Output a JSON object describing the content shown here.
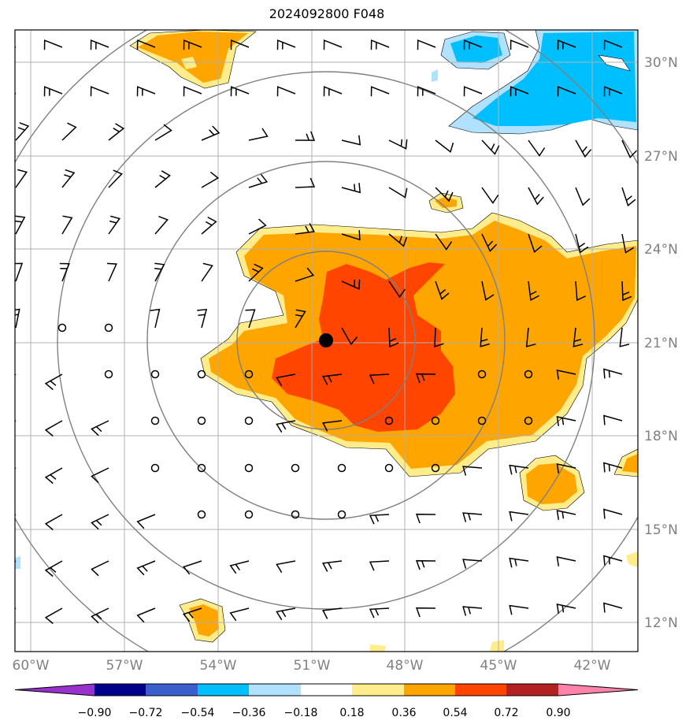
{
  "title": "2024092800 F048",
  "lat_labels": [
    "30°N",
    "27°N",
    "24°N",
    "21°N",
    "18°N",
    "15°N",
    "12°N"
  ],
  "lon_labels": [
    "60°W",
    "57°W",
    "54°W",
    "51°W",
    "48°W",
    "45°W",
    "42°W"
  ],
  "colorbar": {
    "labels": [
      "−0.90",
      "−0.72",
      "−0.54",
      "−0.36",
      "−0.18",
      "0.18",
      "0.36",
      "0.54",
      "0.72",
      "0.90"
    ],
    "colors": [
      "#9932cc",
      "#00008b",
      "#3a5fcd",
      "#00bfff",
      "#b0e2ff",
      "#ffffff",
      "#ffec8b",
      "#ffa500",
      "#ff4500",
      "#b22222",
      "#ff82ab"
    ]
  },
  "colors": {
    "pos_018_036": "#ffec8b",
    "pos_036_054": "#ffa500",
    "pos_054_072": "#ff4500",
    "neg_018_036": "#b0e2ff",
    "neg_036_054": "#00bfff",
    "range_rings": "#808080",
    "gridlines": "#b0b0b0",
    "center_marker": "#000000"
  }
}
